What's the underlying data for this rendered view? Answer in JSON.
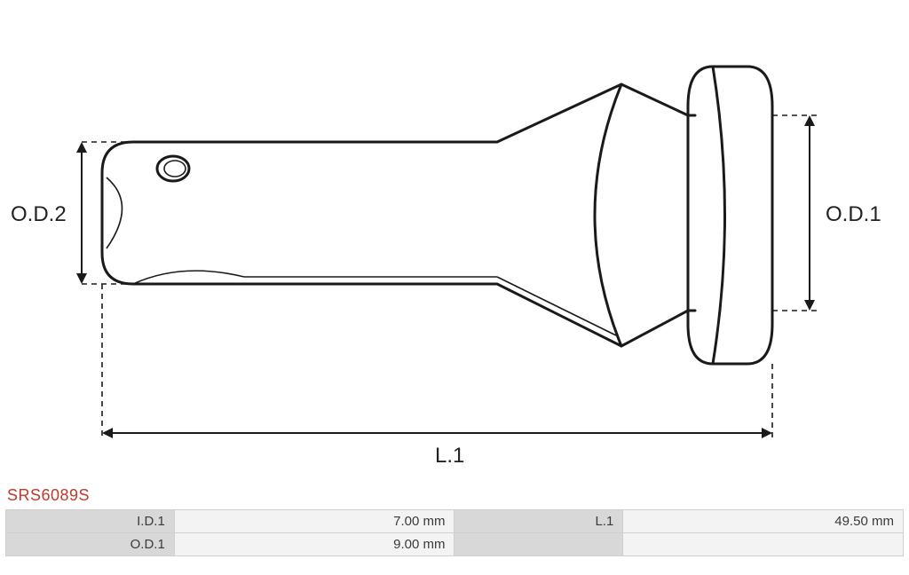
{
  "part_id": "SRS6089S",
  "part_id_color": "#c0392b",
  "colors": {
    "stroke": "#1a1a1a",
    "thin_stroke": "#1a1a1a",
    "table_border": "#cfcfcf",
    "table_header_bg": "#d8d8d8",
    "table_row_bg": "#f3f3f3",
    "text": "#3a3a3a",
    "label_text": "#222222"
  },
  "dimension_labels": {
    "od2": "O.D.2",
    "od1": "O.D.1",
    "l1": "L.1"
  },
  "specs": [
    {
      "label": "I.D.1",
      "value": "7.00 mm",
      "label2": "L.1",
      "value2": "49.50 mm"
    },
    {
      "label": "O.D.1",
      "value": "9.00 mm",
      "label2": "",
      "value2": ""
    }
  ],
  "drawing": {
    "line_width_main": 3,
    "line_width_thin": 1.6,
    "dash_pattern": "6,5",
    "arrow_size": 12
  }
}
